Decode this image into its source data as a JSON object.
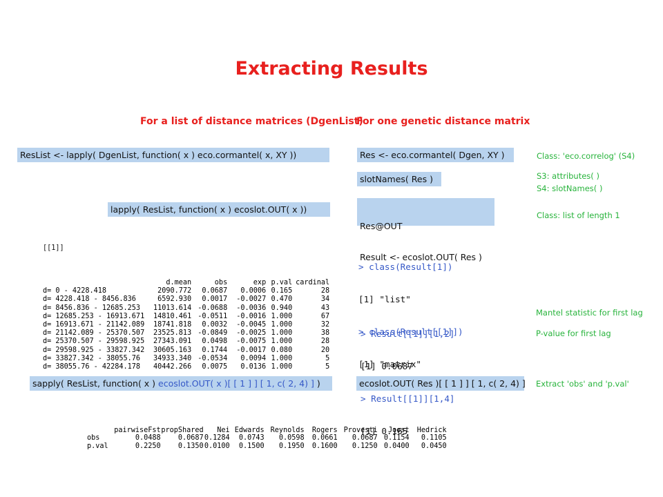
{
  "title": "Extracting Results",
  "left_heading": "For a list of distance matrices (DgenList)",
  "right_heading": "For one genetic distance matrix",
  "code": {
    "reslist": "ResList <- lapply( DgenList, function( x ) eco.cormantel( x, XY ))",
    "lapply_out": "lapply( ResList, function( x ) ecoslot.OUT( x ))",
    "res": "Res <- eco.cormantel( Dgen, XY )",
    "slotnames": "slotNames( Res )",
    "resout_line1": "Res@OUT",
    "resout_line2": "Result <- ecoslot.OUT( Res )",
    "sapply_a": "sapply( ResList, function( x ) ",
    "sapply_b": "ecoslot.OUT( x )[ [ 1 ] ] [ 1, c( 2, 4) ]",
    "sapply_c": " )",
    "ecoslot_single": "ecoslot.OUT( Res )[ [ 1 ] ] [ 1, c( 2, 4) ]"
  },
  "notes": {
    "class_ecocorrelog": "Class: 'eco.correlog' (S4)",
    "s3": "S3: attributes( )",
    "s4": "S4: slotNames( )",
    "class_list": "Class: list of length 1",
    "mantel": "Mantel statistic for first lag",
    "pvalue": "P-value for first lag",
    "extract": "Extract 'obs' and 'p.val'"
  },
  "console1": [
    {
      "prompt": "> class(Result[1])",
      "out": "[1] \"list\""
    },
    {
      "prompt": "> class(Result[[1]])",
      "out": "[1] \"matrix\""
    }
  ],
  "console2": [
    {
      "prompt": "> Result[[1]][1,2]",
      "out": "[1] 0.0687"
    },
    {
      "prompt": "> Result[[1]][1,4]",
      "out": "[1] 0.165"
    }
  ],
  "dist_table": {
    "list_label": "[[1]]",
    "headers": [
      "d.mean",
      "obs",
      "exp",
      "p.val",
      "cardinal"
    ],
    "rows": [
      [
        "d= 0 - 4228.418",
        "2090.772",
        "0.0687",
        "0.0006",
        "0.165",
        "28"
      ],
      [
        "d= 4228.418 - 8456.836",
        "6592.930",
        "0.0017",
        "-0.0027",
        "0.470",
        "34"
      ],
      [
        "d= 8456.836 - 12685.253",
        "11013.614",
        "-0.0688",
        "-0.0036",
        "0.940",
        "43"
      ],
      [
        "d= 12685.253 - 16913.671",
        "14810.461",
        "-0.0511",
        "-0.0016",
        "1.000",
        "67"
      ],
      [
        "d= 16913.671 - 21142.089",
        "18741.818",
        "0.0032",
        "-0.0045",
        "1.000",
        "32"
      ],
      [
        "d= 21142.089 - 25370.507",
        "23525.813",
        "-0.0849",
        "-0.0025",
        "1.000",
        "38"
      ],
      [
        "d= 25370.507 - 29598.925",
        "27343.091",
        "0.0498",
        "-0.0075",
        "1.000",
        "28"
      ],
      [
        "d= 29598.925 - 33827.342",
        "30605.163",
        "0.1744",
        "-0.0017",
        "0.080",
        "20"
      ],
      [
        "d= 33827.342 - 38055.76",
        "34933.340",
        "-0.0534",
        "0.0094",
        "1.000",
        "5"
      ],
      [
        "d= 38055.76 - 42284.178",
        "40442.266",
        "0.0075",
        "0.0136",
        "1.000",
        "5"
      ]
    ]
  },
  "summary_table": {
    "headers": [
      "pairwiseFst",
      "propShared",
      "Nei",
      "Edwards",
      "Reynolds",
      "Rogers",
      "Provesti",
      "Joost",
      "Hedrick"
    ],
    "rows": [
      {
        "label": "obs",
        "values": [
          "0.0488",
          "0.0687",
          "0.1284",
          "0.0743",
          "0.0598",
          "0.0661",
          "0.0687",
          "0.1154",
          "0.1105"
        ]
      },
      {
        "label": "p.val",
        "values": [
          "0.2250",
          "0.1350",
          "0.0100",
          "0.1500",
          "0.1950",
          "0.1600",
          "0.1250",
          "0.0400",
          "0.0450"
        ]
      }
    ]
  }
}
